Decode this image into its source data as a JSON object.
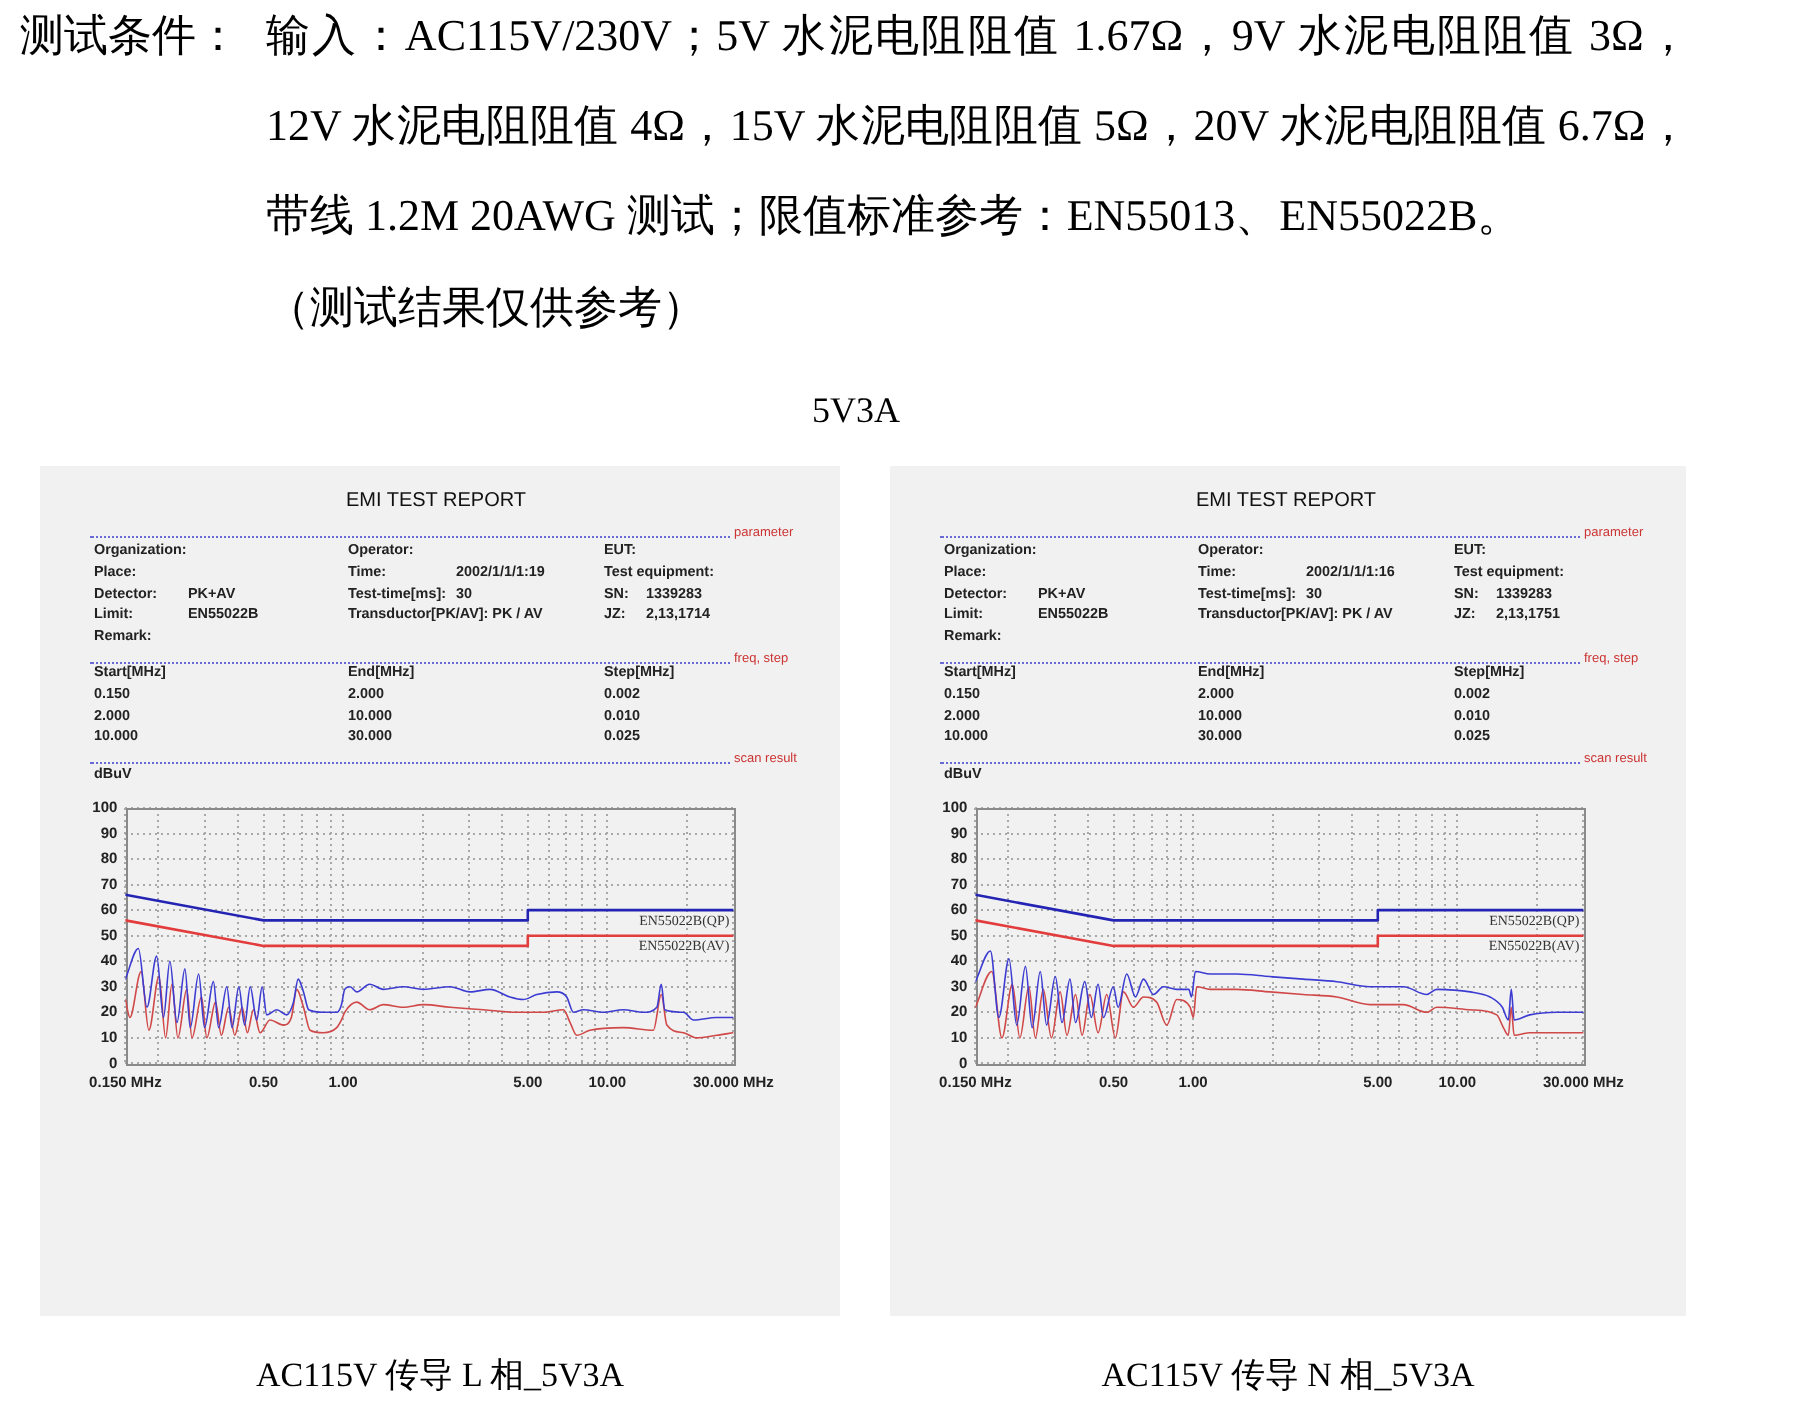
{
  "chart_data": [
    {
      "type": "other",
      "annotations": [
        "测试条件：",
        "输入：AC115V/230V；5V 水泥电阻阻值 1.67Ω，9V 水泥电阻阻值 3Ω，12V 水泥电阻阻值 4Ω，15V 水泥电阻阻值 5Ω，20V 水泥电阻阻值 6.7Ω，带线 1.2M 20AWG 测试；限值标准参考：EN55013、EN55022B。",
        "（测试结果仅供参考）",
        "5V3A"
      ]
    },
    {
      "type": "line",
      "title": "EMI TEST REPORT",
      "ylabel": "dBuV",
      "annotations": [
        "parameter",
        "Organization:",
        "Operator:",
        "EUT:",
        "Place:",
        "Time:",
        "2002/1/1/1:19",
        "Test equipment:",
        "Detector:",
        "PK+AV",
        "Test-time[ms]:",
        "30",
        "SN:",
        "1339283",
        "Limit:",
        "EN55022B",
        "Transductor[PK/AV]: PK / AV",
        "JZ:",
        "2,13,1714",
        "Remark:",
        "freq, step",
        "Start[MHz]",
        "End[MHz]",
        "Step[MHz]",
        "0.150",
        "2.000",
        "0.002",
        "2.000",
        "10.000",
        "0.010",
        "10.000",
        "30.000",
        "0.025",
        "scan result",
        "AC115V 传导 L 相_5V3A"
      ],
      "series": [
        {
          "name": "EN55022B(QP)",
          "color": "#2424b4",
          "x": [
            0.15,
            0.5,
            5,
            5,
            30
          ],
          "values": [
            66,
            56,
            56,
            60,
            60
          ]
        },
        {
          "name": "EN55022B(AV)",
          "color": "#e23c3c",
          "x": [
            0.15,
            0.5,
            5,
            5,
            30
          ],
          "values": [
            56,
            46,
            46,
            50,
            50
          ]
        },
        {
          "color": "#3c3cd2",
          "x": [
            0.15,
            0.168,
            0.181,
            0.197,
            0.209,
            0.221,
            0.235,
            0.252,
            0.264,
            0.284,
            0.299,
            0.323,
            0.338,
            0.363,
            0.38,
            0.403,
            0.424,
            0.445,
            0.471,
            0.494,
            0.514,
            0.561,
            0.612,
            0.649,
            0.676,
            0.708,
            0.741,
            0.842,
            0.946,
            0.986,
            1.014,
            1.062,
            1.126,
            1.26,
            1.42,
            1.69,
            2.01,
            2.54,
            3.02,
            3.6,
            4.28,
            4.81,
            5.41,
            6.43,
            7.02,
            7.44,
            8.12,
            9.66,
            11.5,
            13.7,
            15.4,
            16.0,
            16.5,
            19.4,
            21.2,
            25.9,
            30
          ],
          "values": [
            33,
            45,
            22,
            42,
            18,
            40,
            16,
            37,
            14,
            35,
            14,
            32,
            14,
            30,
            14,
            30,
            15,
            30,
            17,
            30,
            19,
            21,
            19,
            24,
            33,
            28,
            21,
            20,
            20,
            23,
            29,
            30,
            28,
            31,
            29,
            30,
            29,
            30,
            28,
            29,
            26,
            25,
            27,
            28,
            26,
            20,
            21,
            20,
            21,
            20,
            22,
            31,
            21,
            20,
            17,
            18,
            18
          ]
        },
        {
          "color": "#d04848",
          "x": [
            0.15,
            0.156,
            0.172,
            0.184,
            0.201,
            0.213,
            0.225,
            0.237,
            0.256,
            0.268,
            0.291,
            0.305,
            0.329,
            0.346,
            0.369,
            0.389,
            0.415,
            0.434,
            0.458,
            0.485,
            0.529,
            0.594,
            0.637,
            0.668,
            0.708,
            0.75,
            0.842,
            0.946,
            0.986,
            1.014,
            1.126,
            1.26,
            1.42,
            1.69,
            2.01,
            2.54,
            3.4,
            4.54,
            5.73,
            6.82,
            7.23,
            7.66,
            8.6,
            11.5,
            14.94,
            16.0,
            16.8,
            19.4,
            21.8,
            25.9,
            30
          ],
          "values": [
            25,
            18,
            36,
            13,
            34,
            10,
            31,
            10,
            29,
            10,
            26,
            10,
            24,
            11,
            22,
            11,
            22,
            12,
            21,
            12,
            17,
            15,
            18,
            29,
            22,
            13,
            12,
            14,
            17,
            20,
            24,
            21,
            23,
            22,
            23,
            22,
            21,
            20,
            20,
            21,
            16,
            11,
            13,
            14,
            13,
            27,
            15,
            12,
            10,
            11,
            12
          ]
        }
      ],
      "xlim": [
        0.15,
        30
      ],
      "xticks": [
        {
          "value": 0.15,
          "label": "0.150 MHz"
        },
        {
          "value": 0.2,
          "label": null
        },
        {
          "value": 0.3,
          "label": null
        },
        {
          "value": 0.4,
          "label": null
        },
        {
          "value": 0.5,
          "label": "0.50"
        },
        {
          "value": 0.6,
          "label": null
        },
        {
          "value": 0.7,
          "label": null
        },
        {
          "value": 0.8,
          "label": null
        },
        {
          "value": 0.9,
          "label": null
        },
        {
          "value": 1,
          "label": "1.00"
        },
        {
          "value": 2,
          "label": null
        },
        {
          "value": 3,
          "label": null
        },
        {
          "value": 4,
          "label": null
        },
        {
          "value": 5,
          "label": "5.00"
        },
        {
          "value": 6,
          "label": null
        },
        {
          "value": 7,
          "label": null
        },
        {
          "value": 8,
          "label": null
        },
        {
          "value": 9,
          "label": null
        },
        {
          "value": 10,
          "label": "10.00"
        },
        {
          "value": 20,
          "label": null
        },
        {
          "value": 30,
          "label": "30.000 MHz"
        }
      ],
      "ylim": [
        0,
        100
      ],
      "yticks": [
        0,
        10,
        20,
        30,
        40,
        50,
        60,
        70,
        80,
        90,
        100
      ],
      "log": "x",
      "grid": true,
      "marker": "none"
    },
    {
      "type": "line",
      "title": "EMI TEST REPORT",
      "ylabel": "dBuV",
      "annotations": [
        "parameter",
        "Organization:",
        "Operator:",
        "EUT:",
        "Place:",
        "Time:",
        "2002/1/1/1:16",
        "Test equipment:",
        "Detector:",
        "PK+AV",
        "Test-time[ms]:",
        "30",
        "SN:",
        "1339283",
        "Limit:",
        "EN55022B",
        "Transductor[PK/AV]: PK / AV",
        "JZ:",
        "2,13,1751",
        "Remark:",
        "freq, step",
        "Start[MHz]",
        "End[MHz]",
        "Step[MHz]",
        "0.150",
        "2.000",
        "0.002",
        "2.000",
        "10.000",
        "0.010",
        "10.000",
        "30.000",
        "0.025",
        "scan result",
        "AC115V 传导 N 相_5V3A"
      ],
      "series": [
        {
          "name": "EN55022B(QP)",
          "color": "#2424b4",
          "x": [
            0.15,
            0.5,
            5,
            5,
            30
          ],
          "values": [
            66,
            56,
            56,
            60,
            60
          ]
        },
        {
          "name": "EN55022B(AV)",
          "color": "#e23c3c",
          "x": [
            0.15,
            0.5,
            5,
            5,
            30
          ],
          "values": [
            56,
            46,
            46,
            50,
            50
          ]
        },
        {
          "color": "#3c3cd2",
          "x": [
            0.15,
            0.171,
            0.184,
            0.201,
            0.215,
            0.232,
            0.246,
            0.264,
            0.279,
            0.301,
            0.319,
            0.342,
            0.359,
            0.389,
            0.412,
            0.437,
            0.458,
            0.499,
            0.52,
            0.561,
            0.605,
            0.649,
            0.708,
            0.772,
            0.867,
            0.963,
            0.986,
            1.02,
            1.16,
            1.46,
            1.95,
            2.61,
            3.5,
            4.67,
            6.25,
            7.66,
            8.36,
            11.2,
            13.3,
            14.8,
            15.6,
            16.0,
            16.4,
            18.8,
            23.8,
            30
          ],
          "values": [
            32,
            44,
            18,
            41,
            15,
            38,
            14,
            36,
            15,
            34,
            16,
            33,
            16,
            32,
            18,
            31,
            18,
            30,
            22,
            35,
            26,
            33,
            27,
            30,
            29,
            29,
            26,
            36,
            35,
            35,
            34,
            33,
            32,
            30,
            30,
            27,
            29,
            28,
            26,
            22,
            17,
            29,
            17,
            19,
            20,
            20
          ]
        },
        {
          "color": "#d04848",
          "x": [
            0.15,
            0.173,
            0.189,
            0.207,
            0.221,
            0.239,
            0.253,
            0.271,
            0.291,
            0.314,
            0.333,
            0.359,
            0.38,
            0.407,
            0.437,
            0.471,
            0.508,
            0.545,
            0.594,
            0.649,
            0.728,
            0.795,
            0.867,
            0.974,
            1.002,
            1.032,
            1.16,
            1.46,
            1.95,
            2.61,
            3.5,
            4.67,
            6.25,
            7.66,
            8.36,
            11.2,
            14.1,
            14.94,
            15.6,
            16.0,
            16.4,
            18.8,
            30
          ],
          "values": [
            22,
            36,
            10,
            31,
            10,
            30,
            10,
            29,
            10,
            28,
            11,
            27,
            11,
            27,
            12,
            27,
            10,
            28,
            22,
            26,
            24,
            15,
            25,
            22,
            18,
            30,
            29,
            29,
            28,
            27,
            26,
            23,
            23,
            20,
            22,
            21,
            19,
            14,
            11,
            22,
            11,
            12,
            12
          ]
        }
      ],
      "xlim": [
        0.15,
        30
      ],
      "xticks": [
        {
          "value": 0.15,
          "label": "0.150 MHz"
        },
        {
          "value": 0.2,
          "label": null
        },
        {
          "value": 0.3,
          "label": null
        },
        {
          "value": 0.4,
          "label": null
        },
        {
          "value": 0.5,
          "label": "0.50"
        },
        {
          "value": 0.6,
          "label": null
        },
        {
          "value": 0.7,
          "label": null
        },
        {
          "value": 0.8,
          "label": null
        },
        {
          "value": 0.9,
          "label": null
        },
        {
          "value": 1,
          "label": "1.00"
        },
        {
          "value": 2,
          "label": null
        },
        {
          "value": 3,
          "label": null
        },
        {
          "value": 4,
          "label": null
        },
        {
          "value": 5,
          "label": "5.00"
        },
        {
          "value": 6,
          "label": null
        },
        {
          "value": 7,
          "label": null
        },
        {
          "value": 8,
          "label": null
        },
        {
          "value": 9,
          "label": null
        },
        {
          "value": 10,
          "label": "10.00"
        },
        {
          "value": 20,
          "label": null
        },
        {
          "value": 30,
          "label": "30.000 MHz"
        }
      ],
      "ylim": [
        0,
        100
      ],
      "yticks": [
        0,
        10,
        20,
        30,
        40,
        50,
        60,
        70,
        80,
        90,
        100
      ],
      "log": "x",
      "grid": true,
      "marker": "none"
    }
  ]
}
